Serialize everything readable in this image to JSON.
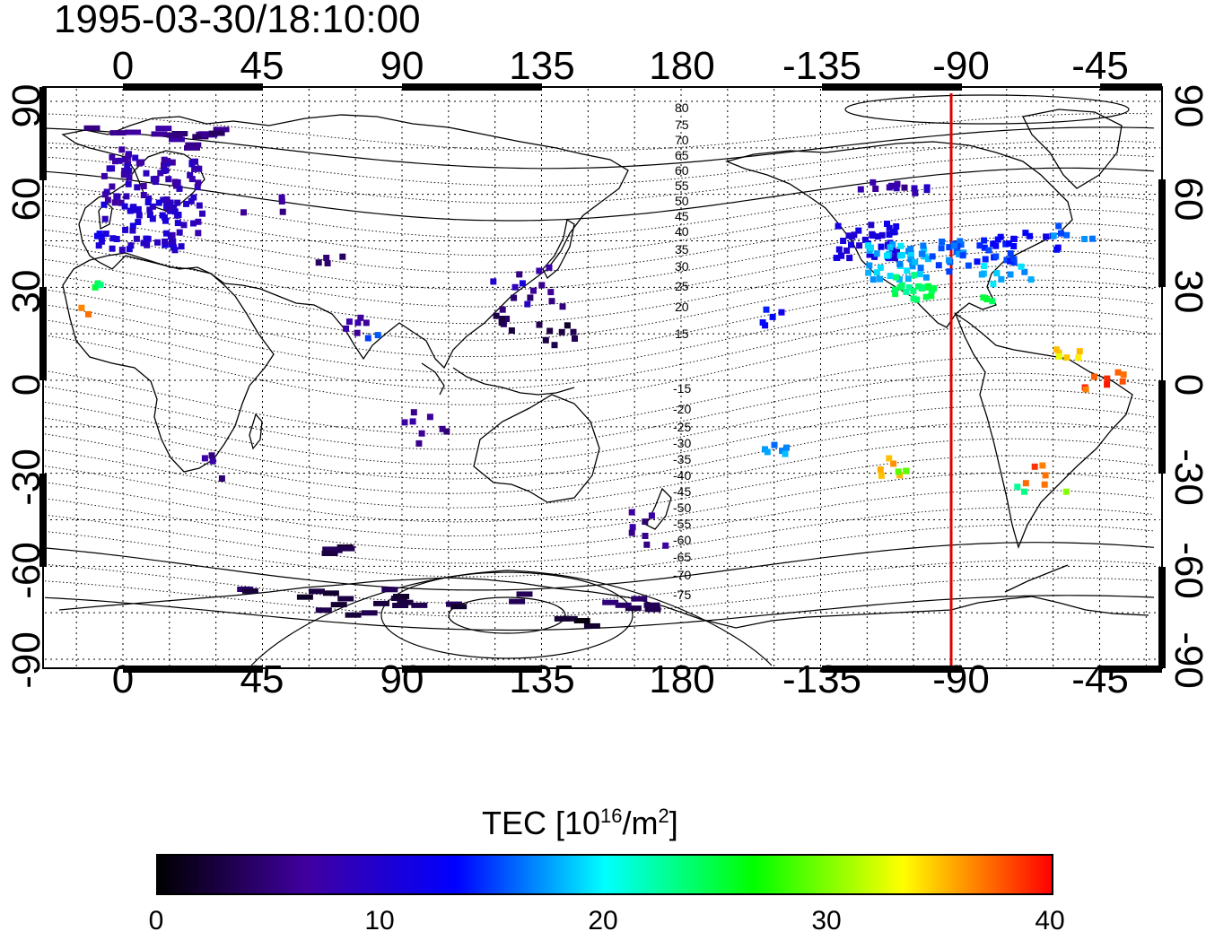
{
  "title": "1995-03-30/18:10:00",
  "map": {
    "lon_ticks": [
      "0",
      "45",
      "90",
      "135",
      "180",
      "-135",
      "-90",
      "-45"
    ],
    "lat_ticks": [
      "90",
      "60",
      "30",
      "0",
      "-30",
      "-60",
      "-90"
    ],
    "marker_longitude": -90,
    "marker_color": "#e00000",
    "mlat_labels_north": [
      "80",
      "75",
      "70",
      "65",
      "60",
      "55",
      "50",
      "45",
      "40",
      "35",
      "30",
      "25",
      "20",
      "15"
    ],
    "mlat_labels_south": [
      "-15",
      "-20",
      "-25",
      "-30",
      "-35",
      "-40",
      "-45",
      "-50",
      "-55",
      "-60",
      "-65",
      "-70",
      "-75"
    ]
  },
  "colorbar": {
    "title_prefix": "TEC  [10",
    "title_exp": "16",
    "title_mid": "/m",
    "title_exp2": "2",
    "title_suffix": "]",
    "ticks": [
      "0",
      "10",
      "20",
      "30",
      "40"
    ],
    "min": 0,
    "max": 40,
    "colors": [
      "#000000",
      "#4000a0",
      "#0000ff",
      "#00ffff",
      "#00ff00",
      "#ffff00",
      "#ff0000"
    ]
  }
}
